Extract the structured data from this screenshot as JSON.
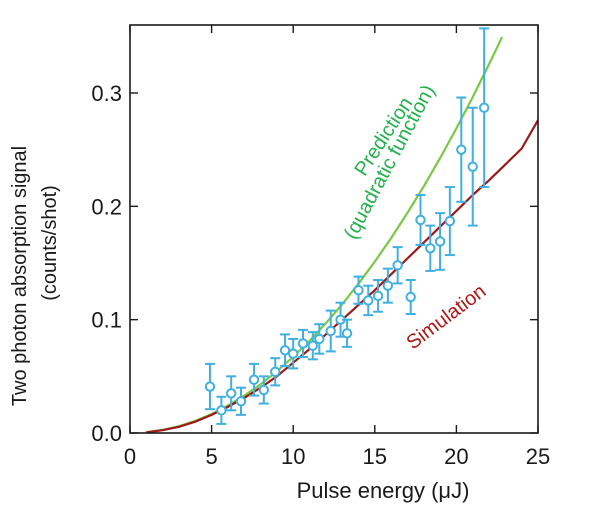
{
  "chart_data": {
    "type": "scatter",
    "title": "",
    "xlabel": "Pulse energy (μJ)",
    "ylabel": "Two photon absorption signal",
    "ylabel_unit": "(counts/shot)",
    "xlim": [
      0,
      25
    ],
    "ylim": [
      0,
      0.36
    ],
    "x_ticks": [
      0,
      5,
      10,
      15,
      20,
      25
    ],
    "x_tick_labels": [
      "0",
      "5",
      "10",
      "15",
      "20",
      "25"
    ],
    "y_ticks": [
      0.0,
      0.1,
      0.2,
      0.3
    ],
    "y_tick_labels": [
      "0.0",
      "0.1",
      "0.2",
      "0.3"
    ],
    "grid": false,
    "legend": "none",
    "colors": {
      "measured": "#3fb0e0",
      "prediction": "#7ac943",
      "simulation": "#a01818",
      "prediction_text": "#22b14c",
      "simulation_text": "#b01818",
      "axis": "#1a1a1a"
    },
    "series": [
      {
        "type": "scatter_errorbar",
        "x": [
          4.9,
          5.6,
          6.2,
          6.8,
          7.6,
          8.2,
          8.9,
          9.5,
          10.0,
          10.6,
          11.2,
          11.6,
          12.3,
          12.9,
          13.3,
          14.0,
          14.6,
          15.2,
          15.8,
          16.4,
          17.2,
          17.8,
          18.4,
          19.0,
          19.6,
          20.3,
          21.0,
          21.7
        ],
        "y": [
          0.041,
          0.02,
          0.035,
          0.028,
          0.047,
          0.038,
          0.054,
          0.073,
          0.07,
          0.079,
          0.077,
          0.083,
          0.09,
          0.1,
          0.088,
          0.126,
          0.117,
          0.121,
          0.13,
          0.148,
          0.12,
          0.188,
          0.163,
          0.169,
          0.187,
          0.25,
          0.235,
          0.287
        ],
        "err": [
          0.02,
          0.012,
          0.015,
          0.012,
          0.014,
          0.012,
          0.012,
          0.014,
          0.013,
          0.012,
          0.012,
          0.013,
          0.018,
          0.015,
          0.012,
          0.012,
          0.013,
          0.014,
          0.015,
          0.016,
          0.015,
          0.022,
          0.02,
          0.025,
          0.03,
          0.046,
          0.052,
          0.07
        ]
      },
      {
        "name": "Prediction (quadratic function)",
        "type": "line",
        "x": [
          1,
          2,
          3,
          4,
          5,
          6,
          7,
          8,
          9,
          10,
          11,
          12,
          13,
          14,
          15,
          16,
          17,
          18,
          19,
          20,
          21,
          22,
          22.8
        ],
        "y": [
          0.0007,
          0.0027,
          0.006,
          0.0107,
          0.0168,
          0.0242,
          0.0329,
          0.043,
          0.0544,
          0.0672,
          0.0813,
          0.0968,
          0.1136,
          0.1317,
          0.1512,
          0.172,
          0.1942,
          0.2177,
          0.2426,
          0.2688,
          0.2964,
          0.3253,
          0.3494
        ]
      },
      {
        "name": "Simulation",
        "type": "line",
        "x": [
          1,
          2,
          3,
          4,
          5,
          6,
          7,
          8,
          9,
          10,
          11,
          12,
          13,
          14,
          15,
          16,
          17,
          18,
          19,
          20,
          21,
          22,
          23,
          24,
          25
        ],
        "y": [
          0.0005,
          0.0025,
          0.0055,
          0.01,
          0.016,
          0.023,
          0.031,
          0.04,
          0.05,
          0.062,
          0.074,
          0.087,
          0.1,
          0.113,
          0.126,
          0.14,
          0.154,
          0.168,
          0.182,
          0.196,
          0.21,
          0.223,
          0.237,
          0.251,
          0.276
        ]
      }
    ],
    "annotations": [
      {
        "text": "Prediction",
        "series": "Prediction (quadratic function)"
      },
      {
        "text": "(quadratic function)",
        "series": "Prediction (quadratic function)"
      },
      {
        "text": "Simulation",
        "series": "Simulation"
      }
    ]
  }
}
